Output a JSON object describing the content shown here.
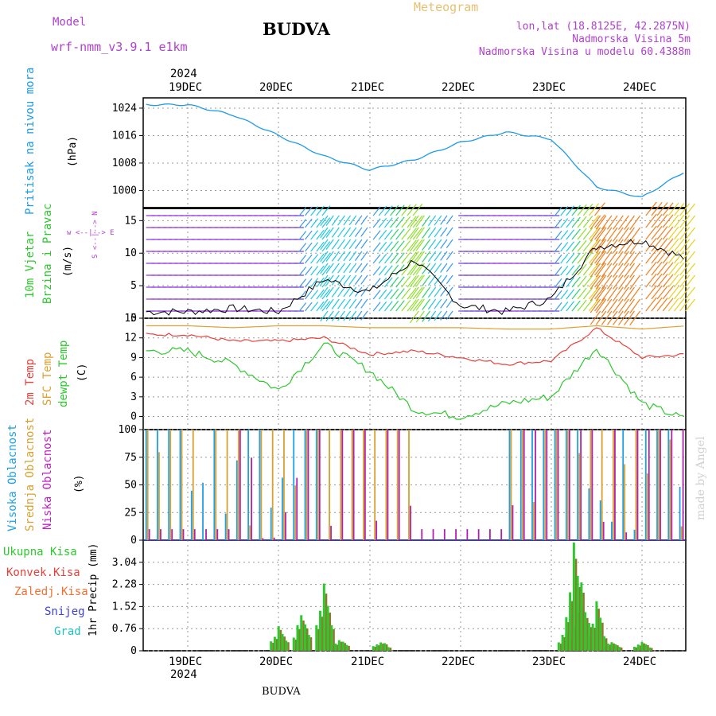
{
  "header": {
    "model_label": "Model",
    "model_name": "wrf-nmm_v3.9.1  e1km",
    "station": "BUDVA",
    "product": "Meteogram",
    "coords": "lon,lat (18.8125E, 42.2875N)",
    "elevation": "Nadmorska Visina 5m",
    "model_elevation": "Nadmorska Visina u modelu 60.4388m",
    "top_year": "2024",
    "bottom_year": "2024",
    "footer_station": "BUDVA",
    "watermark": "made by Angel"
  },
  "colors": {
    "pressure": "#1e9be8",
    "temp2m": "#e8403a",
    "sfc": "#e0a030",
    "dewpt": "#2ec82e",
    "high": "#1ea0e8",
    "mid": "#d8a030",
    "low": "#b020b0",
    "rain_total": "#2ec82e",
    "rain_conv": "#e0403a",
    "frz": "#f07030",
    "snow": "#4040e0",
    "hail": "#20c0c0"
  },
  "days": [
    "19DEC",
    "20DEC",
    "21DEC",
    "22DEC",
    "23DEC",
    "24DEC"
  ],
  "panels": {
    "pressure": {
      "label": "Pritisak na nivou mora",
      "unit": "(hPa)",
      "ticks": [
        "1024",
        "1016",
        "1008",
        "1000"
      ]
    },
    "wind": {
      "label1": "10m Vjetar",
      "label2": "Brzina i Pravac",
      "unit": "(m/s)",
      "ticks": [
        "15",
        "10",
        "5",
        "0"
      ],
      "compass": "w <--|--> E",
      "compass2": "S <--|--> N"
    },
    "temp": {
      "label1": "2m Temp",
      "label2": "SFC Temp",
      "label3": "dewpt Temp",
      "unit": "(C)",
      "ticks": [
        "15",
        "12",
        "9",
        "6",
        "3",
        "0"
      ]
    },
    "cloud": {
      "label1": "Visoka Oblacnost",
      "label2": "Srednja Oblacnost",
      "label3": "Niska Oblacnost",
      "unit": "(%)",
      "ticks": [
        "100",
        "75",
        "50",
        "25",
        "0"
      ]
    },
    "precip": {
      "unit": "1hr Precip (mm)",
      "ticks": [
        "3.04",
        "2.28",
        "1.52",
        "0.76",
        "0"
      ],
      "legend": [
        "Ukupna Kisa",
        "Konvek.Kisa",
        "Zaledj.Kisa",
        "Snijeg",
        "Grad"
      ]
    }
  },
  "chart_data": [
    {
      "type": "line",
      "title": "Pritisak na nivou mora",
      "ylabel": "(hPa)",
      "ylim": [
        995,
        1027
      ],
      "x": [
        "19DEC 00",
        "19DEC 12",
        "20DEC 00",
        "20DEC 12",
        "21DEC 00",
        "21DEC 12",
        "22DEC 00",
        "22DEC 12",
        "23DEC 00",
        "23DEC 12",
        "24DEC 00",
        "24DEC 12"
      ],
      "series": [
        {
          "name": "Pritisak na nivou mora",
          "values": [
            1025,
            1022,
            1016,
            1010,
            1006,
            1009,
            1014,
            1017,
            1015,
            1001,
            998,
            1006
          ]
        }
      ]
    },
    {
      "type": "line",
      "title": "10m Vjetar Brzina i Pravac",
      "ylabel": "(m/s)",
      "ylim": [
        0,
        17
      ],
      "x": [
        "19DEC 00",
        "19DEC 12",
        "20DEC 00",
        "20DEC 12",
        "21DEC 00",
        "21DEC 12",
        "22DEC 00",
        "22DEC 12",
        "23DEC 00",
        "23DEC 12",
        "24DEC 00",
        "24DEC 12"
      ],
      "series": [
        {
          "name": "10m Vjetar",
          "values": [
            1,
            1.5,
            1,
            6,
            4,
            9,
            2,
            1,
            3,
            11,
            12,
            9
          ]
        }
      ]
    },
    {
      "type": "line",
      "title": "Temp",
      "ylabel": "(C)",
      "ylim": [
        -2,
        15
      ],
      "x": [
        "19DEC 00",
        "19DEC 12",
        "20DEC 00",
        "20DEC 12",
        "21DEC 00",
        "21DEC 12",
        "22DEC 00",
        "22DEC 12",
        "23DEC 00",
        "23DEC 12",
        "24DEC 00",
        "24DEC 12"
      ],
      "series": [
        {
          "name": "2m Temp",
          "values": [
            12.5,
            11.5,
            11.5,
            12,
            9.5,
            10,
            9,
            8,
            8.5,
            13.5,
            9,
            9.5
          ]
        },
        {
          "name": "SFC Temp",
          "values": [
            13.8,
            13.5,
            13.8,
            13.8,
            13.5,
            13.5,
            13.5,
            13.3,
            13.3,
            13.8,
            13.3,
            13.8
          ]
        },
        {
          "name": "dewpt Temp",
          "values": [
            10,
            8,
            4,
            11,
            7,
            1,
            0,
            2,
            3,
            10.5,
            2,
            -0.5
          ]
        }
      ]
    },
    {
      "type": "bar",
      "title": "Oblacnost",
      "ylabel": "(%)",
      "ylim": [
        0,
        100
      ],
      "categories": [
        "19DEC",
        "20DEC",
        "21DEC",
        "22DEC",
        "23DEC",
        "24DEC"
      ],
      "series": [
        {
          "name": "Visoka Oblacnost",
          "values": [
            100,
            100,
            0,
            0,
            100,
            100
          ]
        },
        {
          "name": "Srednja Oblacnost",
          "values": [
            100,
            100,
            100,
            0,
            100,
            100
          ]
        },
        {
          "name": "Niska Oblacnost",
          "values": [
            10,
            100,
            100,
            10,
            100,
            100
          ]
        }
      ]
    },
    {
      "type": "bar",
      "title": "1hr Precip",
      "ylabel": "(mm)",
      "ylim": [
        0,
        3.8
      ],
      "x": [
        "20DEC 00",
        "20DEC 06",
        "20DEC 12",
        "20DEC 16",
        "21DEC 03",
        "23DEC 04",
        "23DEC 06",
        "23DEC 08",
        "23DEC 12",
        "23DEC 16",
        "24DEC 00"
      ],
      "series": [
        {
          "name": "Ukupna Kisa",
          "values": [
            0.9,
            1.4,
            2.4,
            0.5,
            0.4,
            0.8,
            3.9,
            2.6,
            1.8,
            0.4,
            0.35
          ]
        }
      ]
    }
  ]
}
